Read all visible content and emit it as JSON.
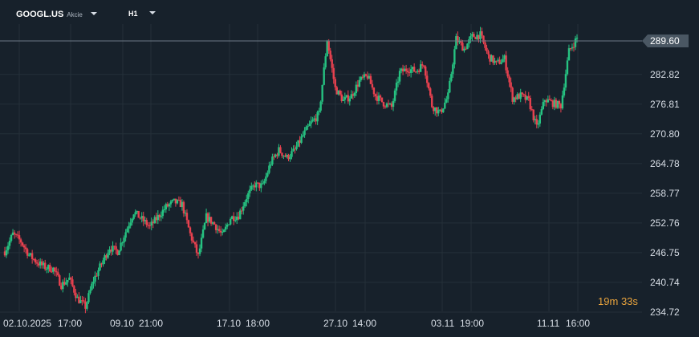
{
  "header": {
    "symbol": "GOOGL.US",
    "instrument_type": "Akcie",
    "timeframe": "H1",
    "caret_icon": "chevron-down-icon"
  },
  "current_price": "289.60",
  "countdown": {
    "minutes": "19",
    "minutes_unit": "m",
    "seconds": "33",
    "seconds_unit": "s"
  },
  "colors": {
    "background": "#17212b",
    "grid": "#243039",
    "bull": "#26c281",
    "bear": "#e8414f",
    "price_line": "#6b7884",
    "price_tag": "#4a5763",
    "countdown": "#e8a33d"
  },
  "chart_data": {
    "type": "candlestick",
    "y_ticks": [
      "289.60",
      "282.82",
      "276.81",
      "270.80",
      "264.78",
      "258.77",
      "252.76",
      "246.75",
      "240.74",
      "234.72"
    ],
    "x_ticks": [
      "02.10.2025",
      "17:00",
      "09.10",
      "21:00",
      "17.10",
      "18:00",
      "27.10",
      "14:00",
      "03.11",
      "19:00",
      "11.11",
      "16:00"
    ],
    "ylim": [
      234.0,
      292.0
    ],
    "grid": true,
    "close_path": [
      247.0,
      250.5,
      249.0,
      246.3,
      244.8,
      243.8,
      243.5,
      240.2,
      241.5,
      237.5,
      235.8,
      241.2,
      244.5,
      247.8,
      247.0,
      251.0,
      255.0,
      253.5,
      252.0,
      254.0,
      256.0,
      257.0,
      256.5,
      250.5,
      246.0,
      254.0,
      252.5,
      250.2,
      253.8,
      254.3,
      258.0,
      260.5,
      260.2,
      265.0,
      267.5,
      266.0,
      267.5,
      270.5,
      273.0,
      274.8,
      289.8,
      280.0,
      277.5,
      278.5,
      281.5,
      282.5,
      278.5,
      277.0,
      276.2,
      283.2,
      284.0,
      283.5,
      285.0,
      276.5,
      275.0,
      278.5,
      290.0,
      288.0,
      290.5,
      290.8,
      286.5,
      285.0,
      286.0,
      278.0,
      278.5,
      277.5,
      272.0,
      277.8,
      277.0,
      276.5,
      287.5,
      290.2
    ]
  }
}
